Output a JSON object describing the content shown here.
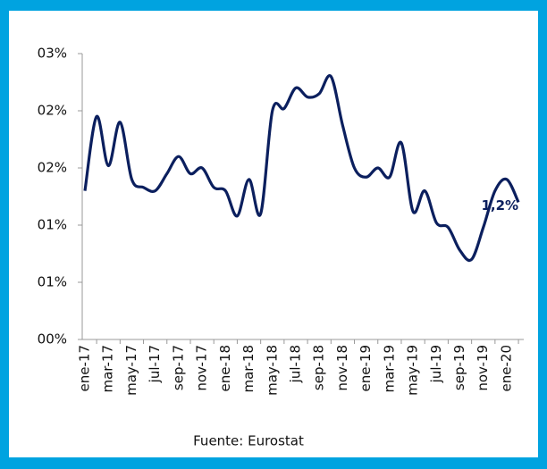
{
  "chart_data": {
    "type": "line",
    "categories": [
      "ene-17",
      null,
      "mar-17",
      null,
      "may-17",
      null,
      "jul-17",
      null,
      "sep-17",
      null,
      "nov-17",
      null,
      "ene-18",
      null,
      "mar-18",
      null,
      "may-18",
      null,
      "jul-18",
      null,
      "sep-18",
      null,
      "nov-18",
      null,
      "ene-19",
      null,
      "mar-19",
      null,
      "may-19",
      null,
      "jul-19",
      null,
      "sep-19",
      null,
      "nov-19",
      null,
      "ene-20",
      null
    ],
    "series": [
      {
        "color": "#0b1f5e",
        "values": [
          1.3,
          1.95,
          1.52,
          1.9,
          1.4,
          1.33,
          1.3,
          1.45,
          1.6,
          1.45,
          1.5,
          1.33,
          1.3,
          1.08,
          1.4,
          1.1,
          2.0,
          2.02,
          2.2,
          2.12,
          2.15,
          2.3,
          1.87,
          1.5,
          1.42,
          1.5,
          1.42,
          1.72,
          1.12,
          1.3,
          1.02,
          0.98,
          0.78,
          0.7,
          0.98,
          1.3,
          1.4,
          1.2
        ],
        "value_labels": [
          null,
          null,
          null,
          null,
          null,
          null,
          null,
          null,
          null,
          null,
          null,
          null,
          null,
          null,
          null,
          null,
          null,
          null,
          null,
          null,
          null,
          null,
          null,
          null,
          null,
          null,
          null,
          null,
          null,
          null,
          null,
          null,
          null,
          null,
          null,
          null,
          null,
          "1,2%"
        ]
      }
    ],
    "ylim": [
      0,
      2.5
    ],
    "yticks": [
      {
        "value": 0,
        "label": "00%"
      },
      {
        "value": 0.5,
        "label": "01%"
      },
      {
        "value": 1.0,
        "label": "01%"
      },
      {
        "value": 1.5,
        "label": "02%"
      },
      {
        "value": 2.0,
        "label": "02%"
      },
      {
        "value": 2.5,
        "label": "03%"
      }
    ],
    "source": "Fuente: Eurostat"
  }
}
